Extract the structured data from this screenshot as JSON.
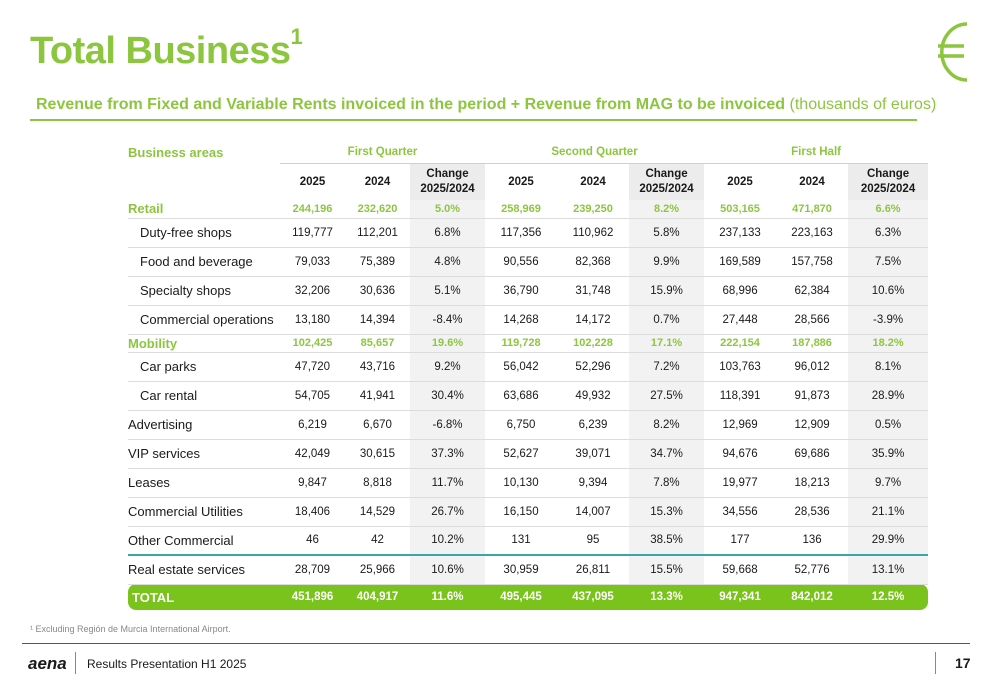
{
  "title": {
    "text": "Total Business",
    "superscript": "1"
  },
  "subtitle": {
    "main": "Revenue from Fixed and Variable Rents invoiced in the period + Revenue from MAG to be invoiced",
    "unit": "(thousands of euros)"
  },
  "colors": {
    "accent": "#8cc63f",
    "total_bar": "#79c31c",
    "teal_rule": "#3aa6a6"
  },
  "icons": {
    "currency": "euro-icon",
    "brand": "aena-logo"
  },
  "table": {
    "business_areas_label": "Business areas",
    "groups": [
      "First Quarter",
      "Second Quarter",
      "First Half"
    ],
    "col_2025": "2025",
    "col_2024": "2024",
    "change_line1": "Change",
    "change_line2": "2025/2024",
    "rows": [
      {
        "label": "Retail",
        "style": "grn",
        "indent": false,
        "values": [
          "244,196",
          "232,620",
          "5.0%",
          "258,969",
          "239,250",
          "8.2%",
          "503,165",
          "471,870",
          "6.6%"
        ]
      },
      {
        "label": "Duty-free shops",
        "style": "",
        "indent": true,
        "values": [
          "119,777",
          "112,201",
          "6.8%",
          "117,356",
          "110,962",
          "5.8%",
          "237,133",
          "223,163",
          "6.3%"
        ]
      },
      {
        "label": "Food and beverage",
        "style": "",
        "indent": true,
        "values": [
          "79,033",
          "75,389",
          "4.8%",
          "90,556",
          "82,368",
          "9.9%",
          "169,589",
          "157,758",
          "7.5%"
        ]
      },
      {
        "label": "Specialty shops",
        "style": "",
        "indent": true,
        "values": [
          "32,206",
          "30,636",
          "5.1%",
          "36,790",
          "31,748",
          "15.9%",
          "68,996",
          "62,384",
          "10.6%"
        ]
      },
      {
        "label": "Commercial operations",
        "style": "",
        "indent": true,
        "values": [
          "13,180",
          "14,394",
          "-8.4%",
          "14,268",
          "14,172",
          "0.7%",
          "27,448",
          "28,566",
          "-3.9%"
        ]
      },
      {
        "label": "Mobility",
        "style": "grn",
        "indent": false,
        "values": [
          "102,425",
          "85,657",
          "19.6%",
          "119,728",
          "102,228",
          "17.1%",
          "222,154",
          "187,886",
          "18.2%"
        ]
      },
      {
        "label": "Car parks",
        "style": "",
        "indent": true,
        "values": [
          "47,720",
          "43,716",
          "9.2%",
          "56,042",
          "52,296",
          "7.2%",
          "103,763",
          "96,012",
          "8.1%"
        ]
      },
      {
        "label": "Car rental",
        "style": "",
        "indent": true,
        "values": [
          "54,705",
          "41,941",
          "30.4%",
          "63,686",
          "49,932",
          "27.5%",
          "118,391",
          "91,873",
          "28.9%"
        ]
      },
      {
        "label": "Advertising",
        "style": "",
        "indent": false,
        "values": [
          "6,219",
          "6,670",
          "-6.8%",
          "6,750",
          "6,239",
          "8.2%",
          "12,969",
          "12,909",
          "0.5%"
        ]
      },
      {
        "label": "VIP services",
        "style": "",
        "indent": false,
        "values": [
          "42,049",
          "30,615",
          "37.3%",
          "52,627",
          "39,071",
          "34.7%",
          "94,676",
          "69,686",
          "35.9%"
        ]
      },
      {
        "label": "Leases",
        "style": "",
        "indent": false,
        "values": [
          "9,847",
          "8,818",
          "11.7%",
          "10,130",
          "9,394",
          "7.8%",
          "19,977",
          "18,213",
          "9.7%"
        ]
      },
      {
        "label": "Commercial Utilities",
        "style": "",
        "indent": false,
        "values": [
          "18,406",
          "14,529",
          "26.7%",
          "16,150",
          "14,007",
          "15.3%",
          "34,556",
          "28,536",
          "21.1%"
        ]
      },
      {
        "label": "Other Commercial",
        "style": "teal",
        "indent": false,
        "values": [
          "46",
          "42",
          "10.2%",
          "131",
          "95",
          "38.5%",
          "177",
          "136",
          "29.9%"
        ]
      },
      {
        "label": "Real estate services",
        "style": "",
        "indent": false,
        "values": [
          "28,709",
          "25,966",
          "10.6%",
          "30,959",
          "26,811",
          "15.5%",
          "59,668",
          "52,776",
          "13.1%"
        ]
      },
      {
        "label": "TOTAL",
        "style": "total",
        "indent": false,
        "values": [
          "451,896",
          "404,917",
          "11.6%",
          "495,445",
          "437,095",
          "13.3%",
          "947,341",
          "842,012",
          "12.5%"
        ]
      }
    ]
  },
  "footnote": "¹ Excluding Región de Murcia International Airport.",
  "footer": {
    "logo_text": "aena",
    "presentation": "Results Presentation H1 2025",
    "page_number": "17"
  }
}
